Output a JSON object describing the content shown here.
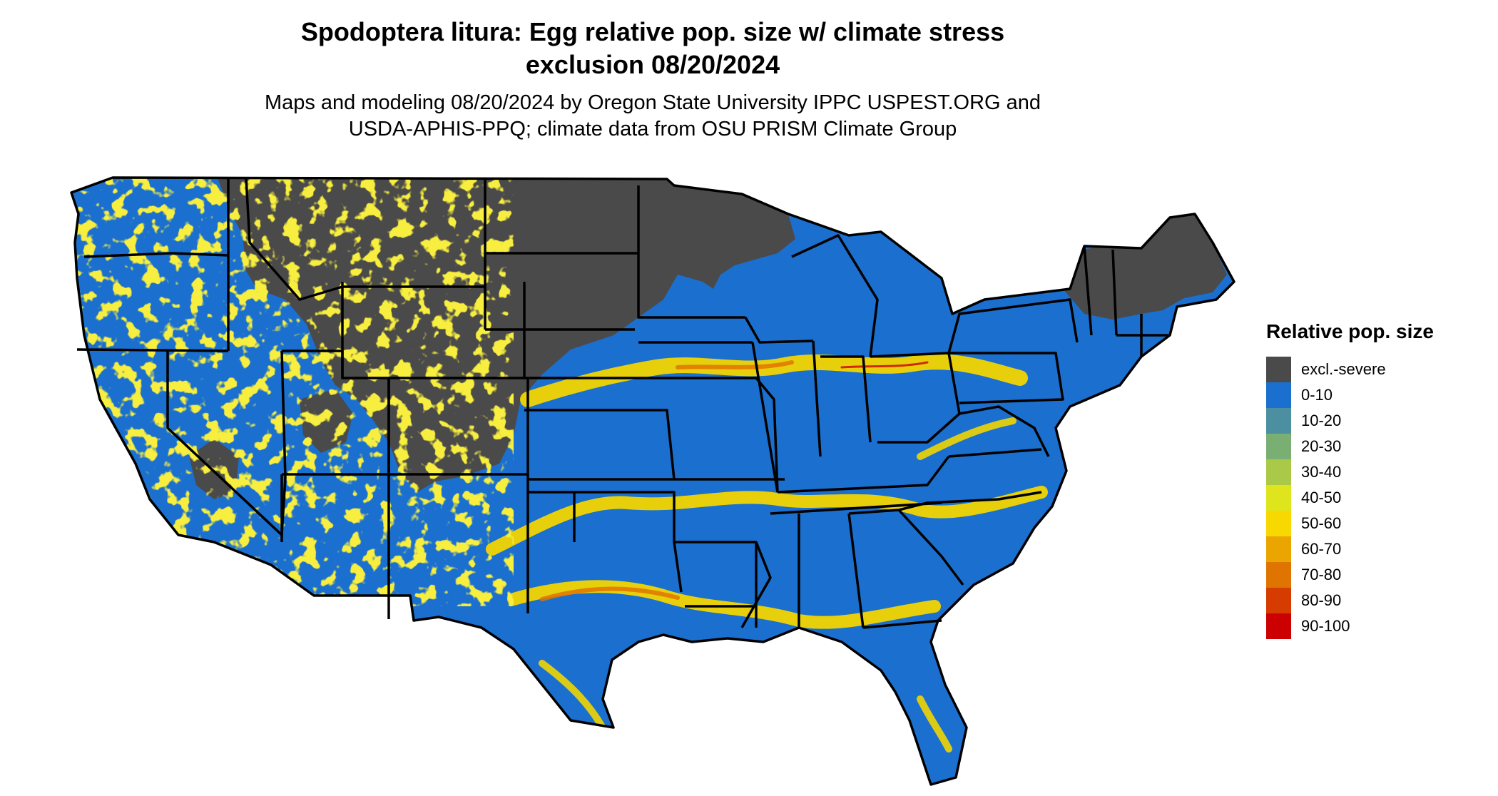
{
  "title": {
    "line1": "Spodoptera litura: Egg relative pop. size w/ climate stress",
    "line2": "exclusion 08/20/2024"
  },
  "subtitle": {
    "line1": "Maps and modeling 08/20/2024 by Oregon State University IPPC USPEST.ORG and",
    "line2": "USDA-APHIS-PPQ; climate data from OSU PRISM Climate Group"
  },
  "legend": {
    "title": "Relative pop. size",
    "items": [
      {
        "label": "excl.-severe",
        "color": "#4a4a4a"
      },
      {
        "label": "0-10",
        "color": "#1b70cf"
      },
      {
        "label": "10-20",
        "color": "#4b8fa0"
      },
      {
        "label": "20-30",
        "color": "#7aaf73"
      },
      {
        "label": "30-40",
        "color": "#abc948"
      },
      {
        "label": "40-50",
        "color": "#dfe51c"
      },
      {
        "label": "50-60",
        "color": "#f7d800"
      },
      {
        "label": "60-70",
        "color": "#eba500"
      },
      {
        "label": "70-80",
        "color": "#e07400"
      },
      {
        "label": "80-90",
        "color": "#d63c00"
      },
      {
        "label": "90-100",
        "color": "#cc0000"
      }
    ]
  }
}
